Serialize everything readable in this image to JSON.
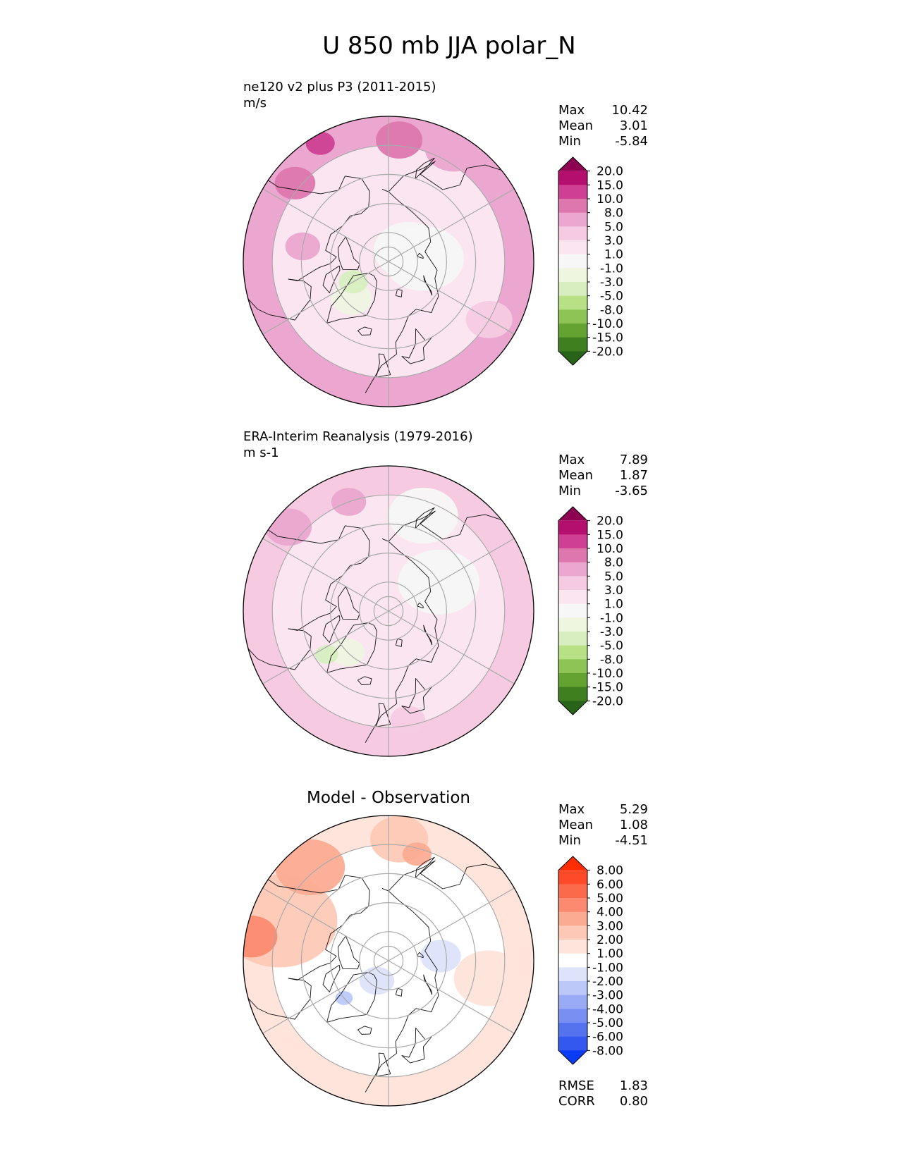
{
  "figure_title": "U 850 mb JJA polar_N",
  "chart_data": [
    {
      "type": "polar_contour_map",
      "id": "test",
      "title": "",
      "left_title": "ne120 v2 plus P3 (2011-2015)",
      "units": "m/s",
      "stats": [
        {
          "label": "Max",
          "value": "10.42"
        },
        {
          "label": "Mean",
          "value": "3.01"
        },
        {
          "label": "Min",
          "value": "-5.84"
        }
      ],
      "colorbar": {
        "ticks": [
          "20.0",
          "15.0",
          "10.0",
          "8.0",
          "5.0",
          "3.0",
          "1.0",
          "-1.0",
          "-3.0",
          "-5.0",
          "-8.0",
          "-10.0",
          "-15.0",
          "-20.0"
        ],
        "colors": [
          "#8e0152",
          "#b40e6e",
          "#cf4094",
          "#de77ae",
          "#eba7cf",
          "#f6cbe2",
          "#fae5f0",
          "#f7f7f7",
          "#eef6e0",
          "#d8eec0",
          "#b8e186",
          "#8dc455",
          "#64a232",
          "#3f7f1f",
          "#276419"
        ]
      },
      "field": {
        "base_color": "#fae5f0",
        "rim_color": "#eba7cf",
        "regions": [
          {
            "lon": 120,
            "lat": 82,
            "r": 12,
            "color": "#f7f7f7"
          },
          {
            "lon": 95,
            "lat": 78,
            "r": 14,
            "color": "#f7f7f7"
          },
          {
            "lon": -45,
            "lat": 72,
            "r": 7,
            "color": "#eef6e0"
          },
          {
            "lon": -60,
            "lat": 76,
            "r": 5,
            "color": "#d8eec0"
          },
          {
            "lon": -100,
            "lat": 60,
            "r": 6,
            "color": "#eba7cf"
          },
          {
            "lon": -130,
            "lat": 48,
            "r": 7,
            "color": "#de77ae"
          },
          {
            "lon": -150,
            "lat": 43,
            "r": 5,
            "color": "#cf4094"
          },
          {
            "lon": 60,
            "lat": 50,
            "r": 8,
            "color": "#f6cbe2"
          },
          {
            "lon": 150,
            "lat": 45,
            "r": 10,
            "color": "#eba7cf"
          },
          {
            "lon": 175,
            "lat": 48,
            "r": 8,
            "color": "#de77ae"
          }
        ]
      }
    },
    {
      "type": "polar_contour_map",
      "id": "reference",
      "title": "",
      "left_title": "ERA-Interim Reanalysis (1979-2016)",
      "units": "m s-1",
      "stats": [
        {
          "label": "Max",
          "value": "7.89"
        },
        {
          "label": "Mean",
          "value": "1.87"
        },
        {
          "label": "Min",
          "value": "-3.65"
        }
      ],
      "colorbar": {
        "ticks": [
          "20.0",
          "15.0",
          "10.0",
          "8.0",
          "5.0",
          "3.0",
          "1.0",
          "-1.0",
          "-3.0",
          "-5.0",
          "-8.0",
          "-10.0",
          "-15.0",
          "-20.0"
        ],
        "colors": [
          "#8e0152",
          "#b40e6e",
          "#cf4094",
          "#de77ae",
          "#eba7cf",
          "#f6cbe2",
          "#fae5f0",
          "#f7f7f7",
          "#eef6e0",
          "#d8eec0",
          "#b8e186",
          "#8dc455",
          "#64a232",
          "#3f7f1f",
          "#276419"
        ]
      },
      "field": {
        "base_color": "#fae5f0",
        "rim_color": "#f6cbe2",
        "regions": [
          {
            "lon": 120,
            "lat": 70,
            "r": 14,
            "color": "#f7f7f7"
          },
          {
            "lon": 160,
            "lat": 55,
            "r": 12,
            "color": "#f7f7f7"
          },
          {
            "lon": -45,
            "lat": 70,
            "r": 6,
            "color": "#eef6e0"
          },
          {
            "lon": -55,
            "lat": 64,
            "r": 4,
            "color": "#d8eec0"
          },
          {
            "lon": -130,
            "lat": 45,
            "r": 8,
            "color": "#eba7cf"
          },
          {
            "lon": 10,
            "lat": 52,
            "r": 6,
            "color": "#f6cbe2"
          },
          {
            "lon": -160,
            "lat": 50,
            "r": 6,
            "color": "#eba7cf"
          }
        ]
      }
    },
    {
      "type": "polar_contour_map",
      "id": "diff",
      "title": "Model - Observation",
      "left_title": "",
      "units": "",
      "stats": [
        {
          "label": "Max",
          "value": "5.29"
        },
        {
          "label": "Mean",
          "value": "1.08"
        },
        {
          "label": "Min",
          "value": "-4.51"
        }
      ],
      "bottom_stats": [
        {
          "label": "RMSE",
          "value": "1.83"
        },
        {
          "label": "CORR",
          "value": "0.80"
        }
      ],
      "colorbar": {
        "ticks": [
          "8.00",
          "6.00",
          "5.00",
          "4.00",
          "3.00",
          "2.00",
          "1.00",
          "-1.00",
          "-2.00",
          "-3.00",
          "-4.00",
          "-5.00",
          "-6.00",
          "-8.00"
        ],
        "colors": [
          "#ff2d00",
          "#ff4a2a",
          "#fb6a4a",
          "#fc8a70",
          "#fcab93",
          "#fdc9b6",
          "#fee4da",
          "#ffffff",
          "#dde3fb",
          "#bcc8f8",
          "#9aabf5",
          "#7a8ff2",
          "#5673ef",
          "#3358f0",
          "#0a3bf5"
        ]
      },
      "field": {
        "base_color": "#ffffff",
        "rim_color": "#fee4da",
        "regions": [
          {
            "lon": -110,
            "lat": 50,
            "r": 20,
            "color": "#fdc9b6"
          },
          {
            "lon": -140,
            "lat": 48,
            "r": 12,
            "color": "#fcab93"
          },
          {
            "lon": -100,
            "lat": 42,
            "r": 9,
            "color": "#fc8a70"
          },
          {
            "lon": 175,
            "lat": 48,
            "r": 10,
            "color": "#fdc9b6"
          },
          {
            "lon": 165,
            "lat": 52,
            "r": 5,
            "color": "#fcab93"
          },
          {
            "lon": 80,
            "lat": 55,
            "r": 12,
            "color": "#fee4da"
          },
          {
            "lon": -30,
            "lat": 82,
            "r": 6,
            "color": "#dde3fb"
          },
          {
            "lon": 95,
            "lat": 72,
            "r": 7,
            "color": "#dde3fb"
          },
          {
            "lon": -50,
            "lat": 70,
            "r": 3,
            "color": "#bcc8f8"
          }
        ]
      }
    }
  ]
}
